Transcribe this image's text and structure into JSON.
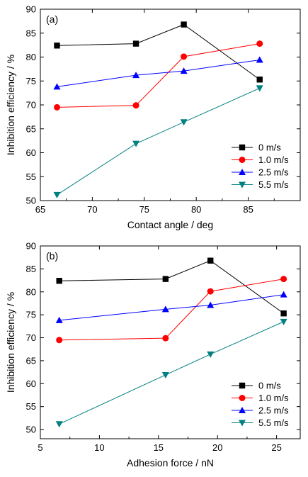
{
  "chart_data": [
    {
      "type": "line",
      "panel_label": "(a)",
      "xlabel": "Contact angle / deg",
      "ylabel": "Inhibition efficiency / %",
      "xlim": [
        65,
        90
      ],
      "ylim": [
        50,
        90
      ],
      "xticks": [
        65,
        70,
        75,
        80,
        85
      ],
      "yticks": [
        50,
        55,
        60,
        65,
        70,
        75,
        80,
        85,
        90
      ],
      "legend_position": "bottom-right",
      "x": [
        66.6,
        74.2,
        78.8,
        86.1
      ],
      "series": [
        {
          "name": "0 m/s",
          "color": "#000000",
          "marker": "square",
          "values": [
            82.4,
            82.8,
            86.8,
            75.3
          ]
        },
        {
          "name": "1.0 m/s",
          "color": "#ff0000",
          "marker": "circle",
          "values": [
            69.5,
            69.9,
            80.1,
            82.8
          ]
        },
        {
          "name": "2.5 m/s",
          "color": "#0000ff",
          "marker": "triangle-up",
          "values": [
            73.8,
            76.2,
            77.1,
            79.4
          ]
        },
        {
          "name": "5.5 m/s",
          "color": "#008080",
          "marker": "triangle-down",
          "values": [
            51.2,
            61.9,
            66.4,
            73.5
          ]
        }
      ]
    },
    {
      "type": "line",
      "panel_label": "(b)",
      "xlabel": "Adhesion force / nN",
      "ylabel": "Inhibition efficiency / %",
      "xlim": [
        5,
        27
      ],
      "ylim": [
        48,
        90
      ],
      "xticks": [
        5,
        10,
        15,
        20,
        25
      ],
      "yticks": [
        50,
        55,
        60,
        65,
        70,
        75,
        80,
        85,
        90
      ],
      "legend_position": "bottom-right",
      "x": [
        6.6,
        15.6,
        19.4,
        25.6
      ],
      "series": [
        {
          "name": "0 m/s",
          "color": "#000000",
          "marker": "square",
          "values": [
            82.4,
            82.8,
            86.8,
            75.3
          ]
        },
        {
          "name": "1.0 m/s",
          "color": "#ff0000",
          "marker": "circle",
          "values": [
            69.5,
            69.9,
            80.1,
            82.8
          ]
        },
        {
          "name": "2.5 m/s",
          "color": "#0000ff",
          "marker": "triangle-up",
          "values": [
            73.8,
            76.2,
            77.1,
            79.4
          ]
        },
        {
          "name": "5.5 m/s",
          "color": "#008080",
          "marker": "triangle-down",
          "values": [
            51.2,
            61.9,
            66.4,
            73.5
          ]
        }
      ]
    }
  ]
}
